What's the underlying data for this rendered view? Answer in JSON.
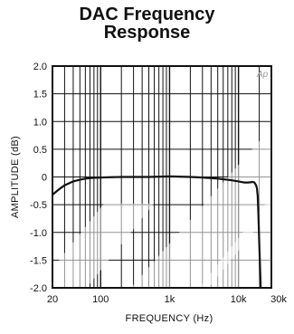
{
  "chart_data": {
    "type": "line",
    "title_lines": [
      "DAC Frequency",
      "Response"
    ],
    "xlabel": "FREQUENCY (Hz)",
    "ylabel": "AMPLITUDE (dB)",
    "badge": "Ap",
    "x_scale": "log",
    "xlim": [
      20,
      30000
    ],
    "ylim": [
      -2.0,
      2.0
    ],
    "grid": true,
    "x_ticks": [
      {
        "value": 20,
        "label": "20"
      },
      {
        "value": 100,
        "label": "100"
      },
      {
        "value": 1000,
        "label": "1k"
      },
      {
        "value": 10000,
        "label": "10k"
      },
      {
        "value": 30000,
        "label": "30k"
      }
    ],
    "y_ticks": [
      {
        "value": 2.0,
        "label": "2.0"
      },
      {
        "value": 1.5,
        "label": "1.5"
      },
      {
        "value": 1.0,
        "label": "1.0"
      },
      {
        "value": 0.5,
        "label": "0.5"
      },
      {
        "value": 0,
        "label": "0"
      },
      {
        "value": -0.5,
        "label": "-0.5"
      },
      {
        "value": -1.0,
        "label": "-1.0"
      },
      {
        "value": -1.5,
        "label": "-1.5"
      },
      {
        "value": -2.0,
        "label": "-2.0"
      }
    ],
    "series": [
      {
        "color": "#111111",
        "x": [
          20,
          25,
          30,
          40,
          50,
          60,
          80,
          100,
          200,
          500,
          1000,
          2000,
          3000,
          5000,
          8000,
          10000,
          12000,
          14000,
          16000,
          17000,
          18000,
          18500,
          19000,
          19500,
          20000,
          20500,
          21000
        ],
        "y": [
          -0.32,
          -0.22,
          -0.15,
          -0.08,
          -0.05,
          -0.03,
          -0.015,
          -0.01,
          0.0,
          0.0,
          0.01,
          0.0,
          -0.01,
          -0.03,
          -0.06,
          -0.08,
          -0.1,
          -0.1,
          -0.09,
          -0.1,
          -0.15,
          -0.2,
          -0.35,
          -0.7,
          -1.2,
          -1.6,
          -2.0
        ]
      }
    ]
  }
}
